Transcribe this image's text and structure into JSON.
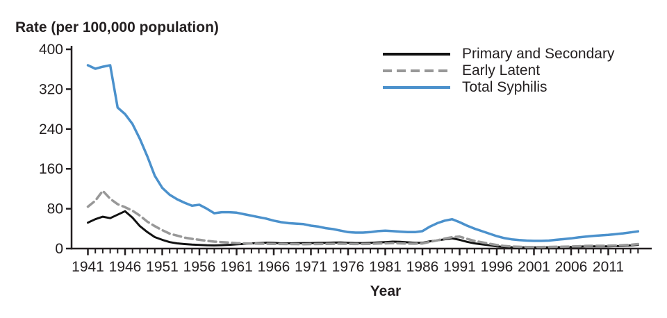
{
  "title": "Rate (per 100,000 population)",
  "xlabel": "Year",
  "colors": {
    "text": "#231f20",
    "axis": "#231f20",
    "primary_secondary": "#121212",
    "early_latent": "#989898",
    "total_syphilis": "#4b91cc"
  },
  "chart_data": {
    "type": "line",
    "title": "Rate (per 100,000 population)",
    "xlabel": "Year",
    "ylabel": "Rate (per 100,000 population)",
    "grid": false,
    "legend_position": "top-right",
    "ylim": [
      0,
      400
    ],
    "yticks": [
      0,
      80,
      160,
      240,
      320,
      400
    ],
    "xticks": [
      1941,
      1946,
      1951,
      1956,
      1961,
      1966,
      1971,
      1976,
      1981,
      1986,
      1991,
      1996,
      2001,
      2006,
      2011
    ],
    "x": [
      1941,
      1942,
      1943,
      1944,
      1945,
      1946,
      1947,
      1948,
      1949,
      1950,
      1951,
      1952,
      1953,
      1954,
      1955,
      1956,
      1957,
      1958,
      1959,
      1960,
      1961,
      1962,
      1963,
      1964,
      1965,
      1966,
      1967,
      1968,
      1969,
      1970,
      1971,
      1972,
      1973,
      1974,
      1975,
      1976,
      1977,
      1978,
      1979,
      1980,
      1981,
      1982,
      1983,
      1984,
      1985,
      1986,
      1987,
      1988,
      1989,
      1990,
      1991,
      1992,
      1993,
      1994,
      1995,
      1996,
      1997,
      1998,
      1999,
      2000,
      2001,
      2002,
      2003,
      2004,
      2005,
      2006,
      2007,
      2008,
      2009,
      2010,
      2011,
      2012,
      2013,
      2014,
      2015
    ],
    "series": [
      {
        "name": "Primary and Secondary",
        "color": "#121212",
        "line_style": "solid",
        "line_width": 3,
        "values": [
          52,
          59,
          64,
          61,
          68,
          75,
          62,
          45,
          33,
          23,
          17.5,
          13,
          10.5,
          9,
          8,
          7.2,
          6.5,
          6.3,
          6.8,
          7.5,
          8.5,
          9.5,
          10.5,
          11,
          11.8,
          11.5,
          10.5,
          10.5,
          10.8,
          11,
          11,
          11.5,
          11.5,
          12,
          12.1,
          11.5,
          11,
          11,
          11.5,
          12.1,
          13,
          14,
          13.5,
          12.5,
          11.5,
          11.5,
          14.5,
          16.5,
          18.5,
          20.5,
          17.5,
          13.5,
          10.5,
          8.5,
          6.5,
          4.5,
          3.3,
          2.6,
          2.5,
          2.2,
          2.2,
          2.4,
          2.5,
          2.7,
          3,
          3.3,
          3.8,
          4.4,
          4.6,
          4.5,
          4.5,
          5,
          5.5,
          6.3,
          7.5
        ]
      },
      {
        "name": "Early Latent",
        "color": "#989898",
        "line_style": "dashed",
        "line_width": 3.5,
        "values": [
          84,
          96,
          116,
          100,
          89,
          83,
          76,
          66,
          54,
          45,
          37,
          30,
          26,
          22,
          19.5,
          17.5,
          15.5,
          14,
          13,
          12,
          11,
          10.5,
          10,
          9.8,
          9.6,
          9.4,
          9.2,
          9,
          9,
          8.8,
          9,
          9.2,
          9.4,
          9.6,
          9.8,
          9.5,
          9.2,
          9.2,
          9.5,
          10,
          10.5,
          11,
          10.5,
          10,
          9.8,
          10.2,
          13.5,
          16.5,
          20,
          23,
          24,
          19.5,
          15.5,
          12.5,
          9.8,
          7.2,
          5.2,
          4.2,
          3.6,
          3.2,
          3.1,
          3.2,
          3.4,
          3.6,
          3.8,
          4.2,
          4.8,
          5.4,
          5.6,
          5.6,
          5.7,
          6.2,
          6.8,
          7.6,
          9
        ]
      },
      {
        "name": "Total Syphilis",
        "color": "#4b91cc",
        "line_style": "solid",
        "line_width": 3.5,
        "values": [
          368,
          361,
          365,
          368,
          283,
          270,
          250,
          220,
          185,
          146,
          122,
          108,
          99,
          92,
          86,
          88,
          80,
          71,
          73,
          73,
          72,
          69,
          66,
          63,
          60,
          56,
          53,
          51,
          50,
          49,
          46,
          44,
          41,
          39,
          36,
          33,
          32,
          32,
          33,
          35,
          36,
          35,
          34,
          33,
          33,
          35,
          44,
          51,
          56,
          59,
          53,
          46,
          40,
          35,
          30,
          25,
          21,
          18.5,
          17,
          16,
          15.5,
          15.5,
          16,
          17.5,
          19,
          20.5,
          22.5,
          24,
          25.5,
          26.5,
          27.5,
          29,
          30.5,
          32.5,
          34.5
        ]
      }
    ]
  }
}
